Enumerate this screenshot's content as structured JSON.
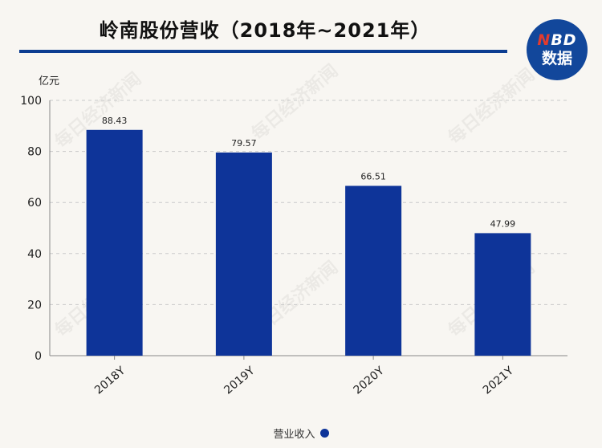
{
  "title": "岭南股份营收（2018年~2021年）",
  "logo": {
    "top": "NBD",
    "bottom": "数据"
  },
  "watermark_text": "每日经济新闻",
  "colors": {
    "bar": "#0e3499",
    "rule": "#0c3d91"
  },
  "chart_data": {
    "type": "bar",
    "title": "岭南股份营收（2018年~2021年）",
    "ylabel": "亿元",
    "ylim": [
      0,
      100
    ],
    "yticks": [
      0,
      20,
      40,
      60,
      80,
      100
    ],
    "grid": true,
    "legend_position": "bottom",
    "categories": [
      "2018Y",
      "2019Y",
      "2020Y",
      "2021Y"
    ],
    "series": [
      {
        "name": "营业收入",
        "values": [
          88.43,
          79.57,
          66.51,
          47.99
        ]
      }
    ]
  }
}
